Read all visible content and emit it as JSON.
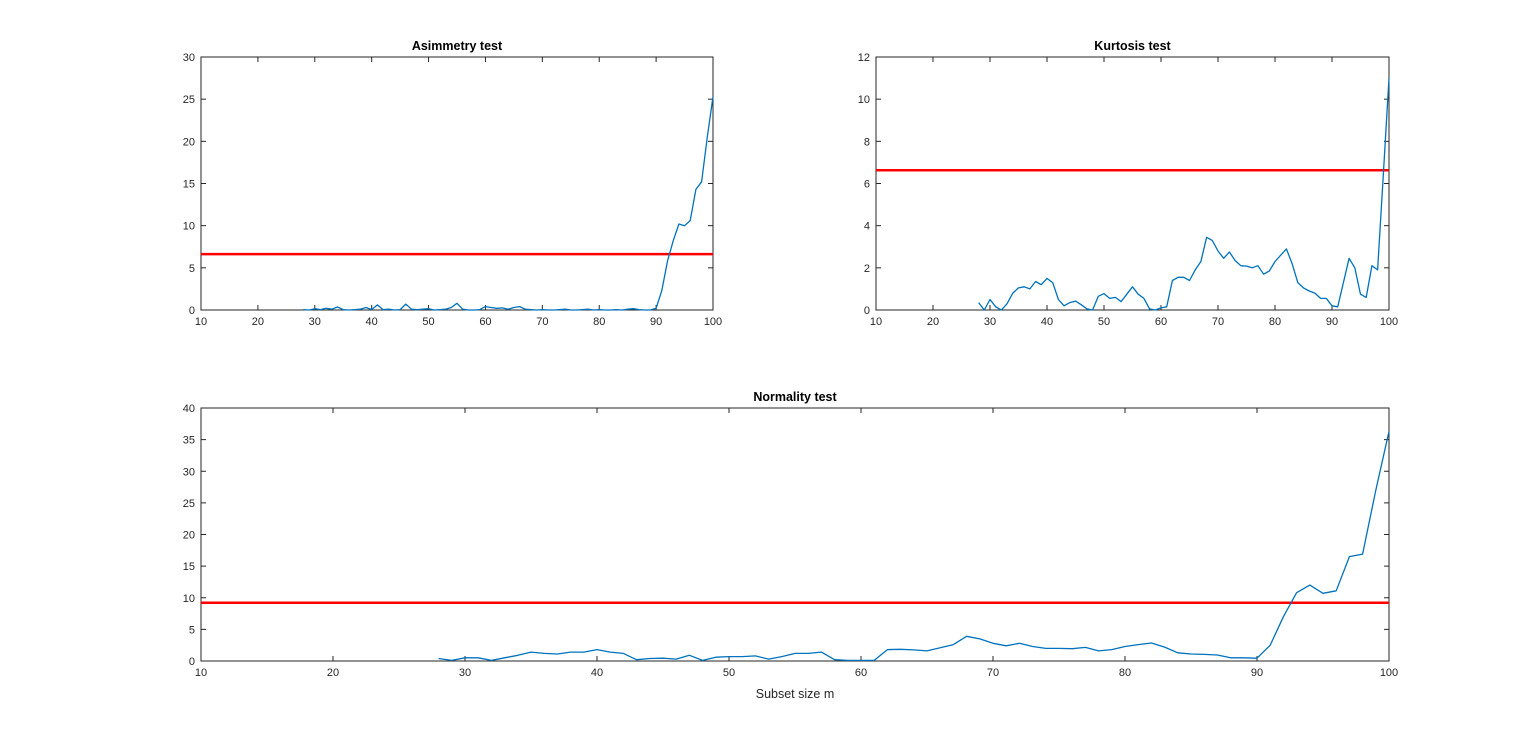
{
  "chart_data": [
    {
      "type": "line",
      "title": "Asimmetry test",
      "xlabel": "",
      "ylabel": "",
      "xlim": [
        10,
        100
      ],
      "ylim": [
        0,
        30
      ],
      "xticks": [
        10,
        20,
        30,
        40,
        50,
        60,
        70,
        80,
        90,
        100
      ],
      "yticks": [
        0,
        5,
        10,
        15,
        20,
        25,
        30
      ],
      "threshold": 6.63,
      "x_start": 28,
      "values": [
        0.05,
        0.0,
        0.15,
        0.05,
        0.2,
        0.1,
        0.35,
        0.05,
        0.0,
        0.05,
        0.1,
        0.3,
        0.05,
        0.6,
        0.05,
        0.1,
        0.0,
        0.05,
        0.7,
        0.1,
        0.05,
        0.1,
        0.15,
        0.0,
        0.05,
        0.1,
        0.3,
        0.8,
        0.1,
        0.0,
        0.0,
        0.05,
        0.4,
        0.3,
        0.2,
        0.25,
        0.1,
        0.3,
        0.4,
        0.1,
        0.05,
        0.0,
        0.05,
        0.0,
        0.0,
        0.05,
        0.1,
        0.0,
        0.0,
        0.05,
        0.1,
        0.0,
        0.05,
        0.0,
        0.0,
        0.05,
        0.0,
        0.1,
        0.15,
        0.05,
        0.0,
        0.0,
        0.2,
        2.3,
        5.8,
        8.2,
        10.2,
        10.0,
        10.6,
        14.3,
        15.2,
        20.5,
        25.3
      ]
    },
    {
      "type": "line",
      "title": "Kurtosis test",
      "xlabel": "",
      "ylabel": "",
      "xlim": [
        10,
        100
      ],
      "ylim": [
        0,
        12
      ],
      "xticks": [
        10,
        20,
        30,
        40,
        50,
        60,
        70,
        80,
        90,
        100
      ],
      "yticks": [
        0,
        2,
        4,
        6,
        8,
        10,
        12
      ],
      "threshold": 6.63,
      "x_start": 28,
      "values": [
        0.35,
        0.0,
        0.5,
        0.15,
        0.0,
        0.3,
        0.8,
        1.05,
        1.1,
        1.0,
        1.35,
        1.2,
        1.5,
        1.3,
        0.5,
        0.2,
        0.35,
        0.42,
        0.25,
        0.05,
        0.0,
        0.65,
        0.78,
        0.55,
        0.6,
        0.4,
        0.75,
        1.1,
        0.75,
        0.55,
        0.05,
        0.0,
        0.1,
        0.15,
        1.4,
        1.55,
        1.55,
        1.4,
        1.9,
        2.3,
        3.45,
        3.3,
        2.8,
        2.45,
        2.75,
        2.35,
        2.1,
        2.08,
        2.0,
        2.1,
        1.7,
        1.85,
        2.3,
        2.6,
        2.9,
        2.2,
        1.3,
        1.05,
        0.9,
        0.8,
        0.55,
        0.55,
        0.2,
        0.15,
        1.3,
        2.45,
        2.0,
        0.75,
        0.6,
        2.1,
        1.9,
        6.4,
        11.0
      ]
    },
    {
      "type": "line",
      "title": "Normality test",
      "xlabel": "Subset size m",
      "ylabel": "",
      "xlim": [
        10,
        100
      ],
      "ylim": [
        0,
        40
      ],
      "xticks": [
        10,
        20,
        30,
        40,
        50,
        60,
        70,
        80,
        90,
        100
      ],
      "yticks": [
        0,
        5,
        10,
        15,
        20,
        25,
        30,
        35,
        40
      ],
      "threshold": 9.21,
      "x_start": 28,
      "values": [
        0.4,
        0.1,
        0.5,
        0.5,
        0.1,
        0.5,
        0.9,
        1.4,
        1.2,
        1.1,
        1.4,
        1.4,
        1.8,
        1.4,
        1.2,
        0.2,
        0.4,
        0.45,
        0.3,
        0.9,
        0.1,
        0.6,
        0.7,
        0.7,
        0.8,
        0.3,
        0.7,
        1.2,
        1.2,
        1.4,
        0.2,
        0.1,
        0.1,
        0.1,
        1.8,
        1.85,
        1.75,
        1.6,
        2.1,
        2.6,
        3.9,
        3.5,
        2.8,
        2.4,
        2.8,
        2.3,
        2.0,
        2.0,
        1.95,
        2.15,
        1.6,
        1.8,
        2.3,
        2.6,
        2.85,
        2.2,
        1.3,
        1.1,
        1.05,
        0.95,
        0.5,
        0.5,
        0.45,
        2.5,
        7.0,
        10.8,
        12.0,
        10.7,
        11.1,
        16.5,
        16.9,
        27.0,
        36.3
      ]
    }
  ],
  "colors": {
    "series": "#0072BD",
    "threshold": "#FF0000",
    "axis": "#262626"
  }
}
